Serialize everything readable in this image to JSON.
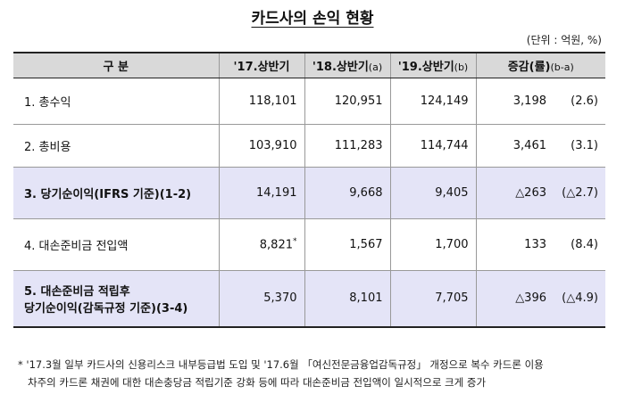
{
  "title": "카드사의 손익 현황",
  "unit": "(단위 : 억원, %)",
  "table": {
    "headers": [
      {
        "label": "구  분",
        "sub": ""
      },
      {
        "label": "'17.상반기",
        "sub": ""
      },
      {
        "label": "'18.상반기",
        "sub": "(a)"
      },
      {
        "label": "'19.상반기",
        "sub": "(b)"
      },
      {
        "label": "증감(률)",
        "sub": "(b-a)"
      }
    ],
    "rows": [
      {
        "label": "1. 총수익",
        "label2": "",
        "v17": "118,101",
        "v17_note": "",
        "v18": "120,951",
        "v19": "124,149",
        "diff": "3,198",
        "rate": "(2.6)"
      },
      {
        "label": "2. 총비용",
        "label2": "",
        "v17": "103,910",
        "v17_note": "",
        "v18": "111,283",
        "v19": "114,744",
        "diff": "3,461",
        "rate": "(3.1)"
      },
      {
        "label": "3. 당기순이익(IFRS 기준)(1-2)",
        "label2": "",
        "v17": "14,191",
        "v17_note": "",
        "v18": "9,668",
        "v19": "9,405",
        "diff": "△263",
        "rate": "(△2.7)"
      },
      {
        "label": "4. 대손준비금 전입액",
        "label2": "",
        "v17": "8,821",
        "v17_note": "*",
        "v18": "1,567",
        "v19": "1,700",
        "diff": "133",
        "rate": "(8.4)"
      },
      {
        "label": "5. 대손준비금 적립후",
        "label2": "당기순이익(감독규정 기준)(3-4)",
        "v17": "5,370",
        "v17_note": "",
        "v18": "8,101",
        "v19": "7,705",
        "diff": "△396",
        "rate": "(△4.9)"
      }
    ]
  },
  "footnote": {
    "line1": "* '17.3월 일부 카드사의 신용리스크 내부등급법 도입 및 '17.6월 「여신전문금융업감독규정」 개정으로 복수 카드론 이용",
    "line2": "차주의 카드론 채권에 대한 대손충당금 적립기준 강화 등에 따라 대손준비금 전입액이 일시적으로 크게 증가"
  }
}
